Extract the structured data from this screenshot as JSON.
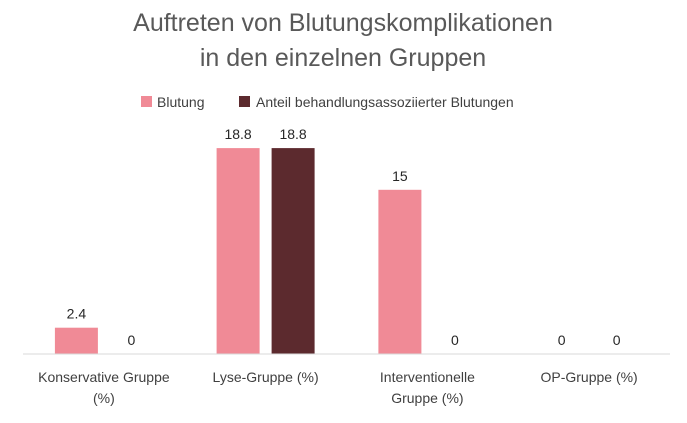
{
  "chart_data": {
    "type": "bar",
    "title": "Auftreten von Blutungskomplikationen in den einzelnen Gruppen",
    "title_lines": [
      "Auftreten von Blutungskomplikationen",
      "in den einzelnen Gruppen"
    ],
    "categories": [
      "Konservative Gruppe (%)",
      "Lyse-Gruppe (%)",
      "Interventionelle Gruppe (%)",
      "OP-Gruppe (%)"
    ],
    "category_label_lines": [
      [
        "Konservative Gruppe",
        "(%)"
      ],
      [
        "Lyse-Gruppe (%)"
      ],
      [
        "Interventionelle",
        "Gruppe (%)"
      ],
      [
        "OP-Gruppe (%)"
      ]
    ],
    "series": [
      {
        "name": "Blutung",
        "color": "#F08A96",
        "values": [
          2.4,
          18.8,
          15,
          0
        ]
      },
      {
        "name": "Anteil behandlungsassoziierter Blutungen",
        "color": "#5C2A2E",
        "values": [
          0,
          18.8,
          0,
          0
        ]
      }
    ],
    "data_labels": [
      [
        "2.4",
        "18.8",
        "15",
        "0"
      ],
      [
        "0",
        "18.8",
        "0",
        "0"
      ]
    ],
    "ylim": [
      0,
      20
    ],
    "grid": false,
    "legend_position": "top",
    "axis_color": "#D9D9D9"
  }
}
